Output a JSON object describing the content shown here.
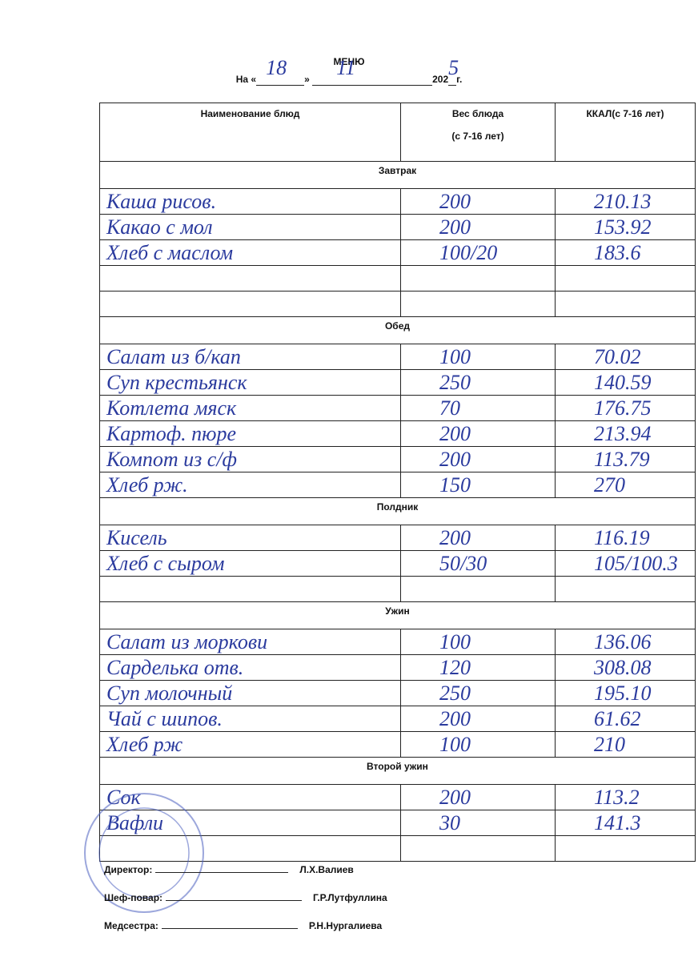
{
  "header": {
    "title": "МЕНЮ",
    "date_prefix": "На «",
    "day": "18",
    "date_mid": "»",
    "month": "11",
    "year_prefix": "202",
    "year_suffix": "5",
    "year_end": "г."
  },
  "table": {
    "columns": {
      "name": "Наименование блюд",
      "weight": "Вес блюда",
      "weight_note": "(с 7-16 лет)",
      "kcal": "ККАЛ(с 7-16 лет)"
    },
    "sections": [
      {
        "title": "Завтрак",
        "rows": [
          [
            "Каша рисов.",
            "200",
            "210.13"
          ],
          [
            "Какао с мол",
            "200",
            "153.92"
          ],
          [
            "Хлеб с маслом",
            "100/20",
            "183.6"
          ]
        ]
      },
      {
        "title": "Обед",
        "rows": [
          [
            "Салат из б/кап",
            "100",
            "70.02"
          ],
          [
            "Суп крестьянск",
            "250",
            "140.59"
          ],
          [
            "Котлета мяск",
            "70",
            "176.75"
          ],
          [
            "Картоф. пюре",
            "200",
            "213.94"
          ],
          [
            "Компот из с/ф",
            "200",
            "113.79"
          ],
          [
            "Хлеб рж.",
            "150",
            "270"
          ]
        ]
      },
      {
        "title": "Полдник",
        "rows": [
          [
            "Кисель",
            "200",
            "116.19"
          ],
          [
            "Хлеб с сыром",
            "50/30",
            "105/100.3"
          ]
        ]
      },
      {
        "title": "Ужин",
        "rows": [
          [
            "Салат из моркови",
            "100",
            "136.06"
          ],
          [
            "Сарделька отв.",
            "120",
            "308.08"
          ],
          [
            "Суп молочный",
            "250",
            "195.10"
          ],
          [
            "Чай с шипов.",
            "200",
            "61.62"
          ],
          [
            "Хлеб рж",
            "100",
            "210"
          ]
        ]
      },
      {
        "title": "Второй ужин",
        "rows": [
          [
            "Сок",
            "200",
            "113.2"
          ],
          [
            "Вафли",
            "30",
            "141.3"
          ]
        ]
      }
    ]
  },
  "signatures": [
    {
      "role": "Директор:",
      "name": "Л.Х.Валиев"
    },
    {
      "role": "Шеф-повар:",
      "name": "Г.Р.Лутфуллина"
    },
    {
      "role": "Медсестра:",
      "name": "Р.Н.Нургалиева"
    }
  ]
}
